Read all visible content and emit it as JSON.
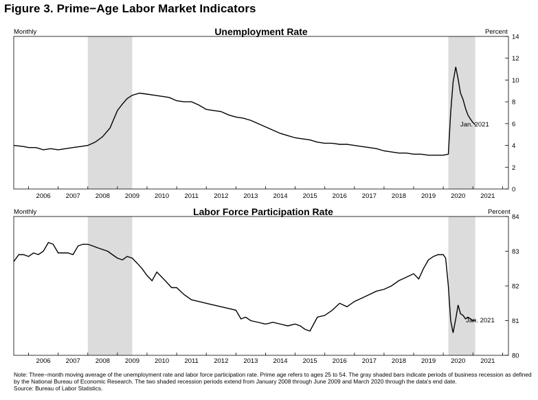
{
  "figure_title": "Figure 3. Prime−Age Labor Market Indicators",
  "note": "Note: Three−month moving average of the unemployment rate and labor force participation rate. Prime age refers to ages 25 to 54. The gray shaded bars indicate periods of business recession as defined by the National Bureau of Economic Research. The two shaded recession periods extend from January 2008 through June 2009 and March 2020 through the data's end date.",
  "source": "Source: Bureau of Labor Statistics.",
  "colors": {
    "line": "#000000",
    "recession": "#dcdcdc",
    "axis": "#000000"
  },
  "chart_data": [
    {
      "type": "line",
      "title": "Unemployment Rate",
      "frequency_label": "Monthly",
      "unit_label": "Percent",
      "end_label": "Jan. 2021",
      "xlim": [
        2005.5,
        2022.2
      ],
      "ylim": [
        0,
        14
      ],
      "yticks": [
        0,
        2,
        4,
        6,
        8,
        10,
        12,
        14
      ],
      "xtick_labels": [
        "2006",
        "2007",
        "2008",
        "2009",
        "2010",
        "2011",
        "2012",
        "2013",
        "2014",
        "2015",
        "2016",
        "2017",
        "2018",
        "2019",
        "2020",
        "2021"
      ],
      "recessions": [
        [
          2008.0,
          2009.5
        ],
        [
          2020.17,
          2021.08
        ]
      ],
      "series": [
        {
          "x": [
            2005.5,
            2005.83,
            2006.0,
            2006.25,
            2006.5,
            2006.75,
            2007.0,
            2007.25,
            2007.5,
            2007.75,
            2008.0,
            2008.25,
            2008.5,
            2008.75,
            2009.0,
            2009.17,
            2009.33,
            2009.5,
            2009.75,
            2010.0,
            2010.25,
            2010.5,
            2010.75,
            2011.0,
            2011.25,
            2011.5,
            2011.75,
            2012.0,
            2012.25,
            2012.5,
            2012.75,
            2013.0,
            2013.25,
            2013.5,
            2013.75,
            2014.0,
            2014.25,
            2014.5,
            2014.75,
            2015.0,
            2015.25,
            2015.5,
            2015.75,
            2016.0,
            2016.25,
            2016.5,
            2016.75,
            2017.0,
            2017.25,
            2017.5,
            2017.75,
            2018.0,
            2018.25,
            2018.5,
            2018.75,
            2019.0,
            2019.25,
            2019.5,
            2019.75,
            2020.0,
            2020.17,
            2020.25,
            2020.33,
            2020.42,
            2020.5,
            2020.58,
            2020.67,
            2020.75,
            2020.83,
            2020.92,
            2021.0,
            2021.08
          ],
          "y": [
            4.0,
            3.9,
            3.8,
            3.8,
            3.6,
            3.7,
            3.6,
            3.7,
            3.8,
            3.9,
            4.0,
            4.3,
            4.8,
            5.6,
            7.2,
            7.8,
            8.3,
            8.6,
            8.8,
            8.7,
            8.6,
            8.5,
            8.4,
            8.1,
            8.0,
            8.0,
            7.7,
            7.3,
            7.2,
            7.1,
            6.8,
            6.6,
            6.5,
            6.3,
            6.0,
            5.7,
            5.4,
            5.1,
            4.9,
            4.7,
            4.6,
            4.5,
            4.3,
            4.2,
            4.2,
            4.1,
            4.1,
            4.0,
            3.9,
            3.8,
            3.7,
            3.5,
            3.4,
            3.3,
            3.3,
            3.2,
            3.2,
            3.1,
            3.1,
            3.1,
            3.2,
            7.0,
            9.8,
            11.2,
            10.1,
            8.8,
            8.2,
            7.4,
            6.8,
            6.4,
            6.1,
            5.9
          ]
        }
      ]
    },
    {
      "type": "line",
      "title": "Labor Force Participation Rate",
      "frequency_label": "Monthly",
      "unit_label": "Percent",
      "end_label": "Jan. 2021",
      "xlim": [
        2005.5,
        2022.2
      ],
      "ylim": [
        80,
        84
      ],
      "yticks": [
        80,
        81,
        82,
        83,
        84
      ],
      "xtick_labels": [
        "2006",
        "2007",
        "2008",
        "2009",
        "2010",
        "2011",
        "2012",
        "2013",
        "2014",
        "2015",
        "2016",
        "2017",
        "2018",
        "2019",
        "2020",
        "2021"
      ],
      "recessions": [
        [
          2008.0,
          2009.5
        ],
        [
          2020.17,
          2021.08
        ]
      ],
      "series": [
        {
          "x": [
            2005.5,
            2005.67,
            2005.83,
            2006.0,
            2006.17,
            2006.33,
            2006.5,
            2006.67,
            2006.83,
            2007.0,
            2007.17,
            2007.33,
            2007.5,
            2007.67,
            2007.83,
            2008.0,
            2008.17,
            2008.33,
            2008.5,
            2008.67,
            2008.83,
            2009.0,
            2009.17,
            2009.33,
            2009.5,
            2009.67,
            2009.83,
            2010.0,
            2010.17,
            2010.33,
            2010.5,
            2010.67,
            2010.83,
            2011.0,
            2011.25,
            2011.5,
            2011.75,
            2012.0,
            2012.25,
            2012.5,
            2012.75,
            2013.0,
            2013.17,
            2013.33,
            2013.5,
            2013.75,
            2014.0,
            2014.25,
            2014.5,
            2014.75,
            2015.0,
            2015.17,
            2015.33,
            2015.5,
            2015.75,
            2016.0,
            2016.25,
            2016.5,
            2016.75,
            2017.0,
            2017.25,
            2017.5,
            2017.75,
            2018.0,
            2018.25,
            2018.5,
            2018.75,
            2019.0,
            2019.17,
            2019.33,
            2019.5,
            2019.67,
            2019.83,
            2020.0,
            2020.08,
            2020.17,
            2020.25,
            2020.33,
            2020.42,
            2020.5,
            2020.58,
            2020.67,
            2020.75,
            2020.83,
            2020.92,
            2021.0,
            2021.08
          ],
          "y": [
            82.7,
            82.9,
            82.9,
            82.85,
            82.95,
            82.9,
            83.0,
            83.25,
            83.2,
            82.95,
            82.95,
            82.95,
            82.9,
            83.15,
            83.2,
            83.2,
            83.15,
            83.1,
            83.05,
            83.0,
            82.9,
            82.8,
            82.75,
            82.85,
            82.8,
            82.65,
            82.5,
            82.3,
            82.15,
            82.4,
            82.25,
            82.1,
            81.95,
            81.95,
            81.75,
            81.6,
            81.55,
            81.5,
            81.45,
            81.4,
            81.35,
            81.3,
            81.05,
            81.1,
            81.0,
            80.95,
            80.9,
            80.95,
            80.9,
            80.85,
            80.9,
            80.85,
            80.75,
            80.7,
            81.1,
            81.15,
            81.3,
            81.5,
            81.4,
            81.55,
            81.65,
            81.75,
            81.85,
            81.9,
            82.0,
            82.15,
            82.25,
            82.35,
            82.2,
            82.5,
            82.75,
            82.85,
            82.9,
            82.9,
            82.8,
            82.0,
            81.0,
            80.65,
            81.05,
            81.45,
            81.2,
            81.15,
            81.05,
            81.1,
            81.05,
            81.0,
            81.0
          ]
        }
      ]
    }
  ]
}
